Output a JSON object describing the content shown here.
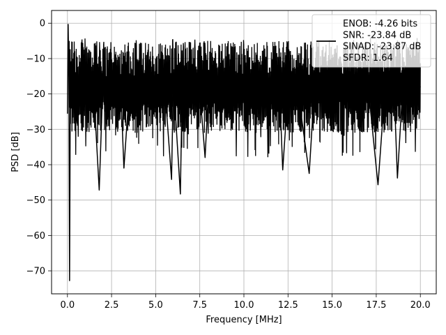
{
  "chart_data": {
    "type": "line",
    "xlabel": "Frequency [MHz]",
    "ylabel": "PSD [dB]",
    "xlim": [
      -0.9,
      20.9
    ],
    "ylim": [
      -76.5,
      3.6
    ],
    "grid": true,
    "legend_position": "top-right",
    "xticks": [
      0.0,
      2.5,
      5.0,
      7.5,
      10.0,
      12.5,
      15.0,
      17.5,
      20.0
    ],
    "xtick_labels": [
      "0.0",
      "2.5",
      "5.0",
      "7.5",
      "10.0",
      "12.5",
      "15.0",
      "17.5",
      "20.0"
    ],
    "yticks": [
      0,
      -10,
      -20,
      -30,
      -40,
      -50,
      -60,
      -70
    ],
    "ytick_labels": [
      "0",
      "−10",
      "−20",
      "−30",
      "−40",
      "−50",
      "−60",
      "−70"
    ],
    "legend": {
      "lines": [
        "ENOB: -4.26 bits",
        "SNR: -23.84 dB",
        "SINAD: -23.87 dB",
        "SFDR: 1.64"
      ]
    },
    "series": [
      {
        "color": "#000000",
        "x": [
          0.0,
          0.04,
          0.08,
          0.12,
          0.16,
          0.5,
          1.0,
          1.5,
          1.8,
          2.0,
          2.5,
          3.0,
          3.2,
          3.5,
          4.0,
          4.5,
          5.0,
          5.5,
          5.9,
          6.0,
          6.4,
          6.5,
          7.0,
          7.5,
          7.8,
          8.0,
          8.5,
          9.0,
          9.5,
          10.0,
          10.5,
          11.0,
          11.5,
          12.0,
          12.2,
          12.5,
          13.0,
          13.7,
          14.0,
          14.5,
          15.0,
          15.5,
          16.0,
          16.5,
          17.0,
          17.6,
          18.0,
          18.5,
          18.7,
          19.0,
          19.5,
          20.0
        ],
        "y": [
          -25.5,
          -0.3,
          -15.0,
          -72.8,
          -20.0,
          -22.0,
          -18.0,
          -20.0,
          -47.2,
          -18.0,
          -20.0,
          -16.0,
          -41.0,
          -19.0,
          -22.0,
          -18.0,
          -20.0,
          -17.0,
          -44.2,
          -16.0,
          -48.3,
          -18.0,
          -17.0,
          -19.0,
          -38.0,
          -18.0,
          -17.0,
          -16.0,
          -19.0,
          -18.0,
          -20.0,
          -17.0,
          -18.0,
          -16.0,
          -41.5,
          -19.0,
          -17.0,
          -42.5,
          -18.0,
          -17.0,
          -16.0,
          -19.0,
          -18.0,
          -17.0,
          -16.0,
          -45.7,
          -18.0,
          -17.0,
          -43.8,
          -18.0,
          -17.0,
          -18.0
        ]
      }
    ]
  }
}
